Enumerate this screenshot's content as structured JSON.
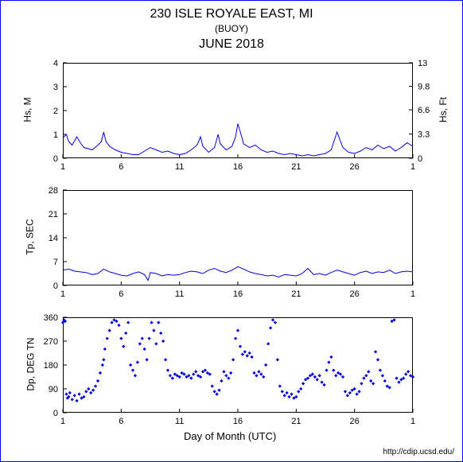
{
  "header": {
    "title": "230 ISLE ROYALE EAST, MI",
    "subtitle": "(BUOY)",
    "month": "JUNE 2018"
  },
  "xlabel": "Day of Month (UTC)",
  "credit": "http://cdip.ucsd.edu/",
  "xaxis": {
    "min": 1,
    "max": 31,
    "ticks": [
      1,
      6,
      11,
      16,
      21,
      26,
      1
    ],
    "tick_positions": [
      1,
      6,
      11,
      16,
      21,
      26,
      31
    ]
  },
  "colors": {
    "line": "#0000ee",
    "scatter": "#0000ee",
    "axis": "#000000",
    "bg": "#ffffff",
    "border": "#0000ff"
  },
  "chart1": {
    "ylabel_left": "Hs, M",
    "ylabel_right": "Hs, Ft",
    "ylim_left": [
      0,
      4
    ],
    "yticks_left": [
      0,
      1,
      2,
      3,
      4
    ],
    "ylim_right": [
      0,
      13
    ],
    "yticks_right": [
      0,
      3.3,
      6.6,
      9.8,
      13
    ],
    "data": [
      [
        1.0,
        0.85
      ],
      [
        1.3,
        1.0
      ],
      [
        1.5,
        0.7
      ],
      [
        1.8,
        0.55
      ],
      [
        2.2,
        0.9
      ],
      [
        2.5,
        0.65
      ],
      [
        2.8,
        0.45
      ],
      [
        3.2,
        0.4
      ],
      [
        3.5,
        0.35
      ],
      [
        4.0,
        0.55
      ],
      [
        4.3,
        0.7
      ],
      [
        4.5,
        1.1
      ],
      [
        4.7,
        0.7
      ],
      [
        5.0,
        0.5
      ],
      [
        5.5,
        0.35
      ],
      [
        6.0,
        0.25
      ],
      [
        6.5,
        0.2
      ],
      [
        7.0,
        0.15
      ],
      [
        7.5,
        0.15
      ],
      [
        8.0,
        0.3
      ],
      [
        8.5,
        0.45
      ],
      [
        9.0,
        0.35
      ],
      [
        9.5,
        0.25
      ],
      [
        10.0,
        0.3
      ],
      [
        10.5,
        0.2
      ],
      [
        11.0,
        0.15
      ],
      [
        11.5,
        0.2
      ],
      [
        12.0,
        0.35
      ],
      [
        12.5,
        0.55
      ],
      [
        12.8,
        0.9
      ],
      [
        13.0,
        0.5
      ],
      [
        13.5,
        0.25
      ],
      [
        14.0,
        0.45
      ],
      [
        14.3,
        1.0
      ],
      [
        14.5,
        0.6
      ],
      [
        15.0,
        0.35
      ],
      [
        15.5,
        0.5
      ],
      [
        15.8,
        0.9
      ],
      [
        16.0,
        1.45
      ],
      [
        16.3,
        0.95
      ],
      [
        16.5,
        0.6
      ],
      [
        17.0,
        0.45
      ],
      [
        17.5,
        0.55
      ],
      [
        18.0,
        0.35
      ],
      [
        18.5,
        0.25
      ],
      [
        19.0,
        0.3
      ],
      [
        19.5,
        0.2
      ],
      [
        20.0,
        0.15
      ],
      [
        20.5,
        0.2
      ],
      [
        21.0,
        0.15
      ],
      [
        21.5,
        0.1
      ],
      [
        22.0,
        0.15
      ],
      [
        22.5,
        0.1
      ],
      [
        23.0,
        0.15
      ],
      [
        23.5,
        0.2
      ],
      [
        24.0,
        0.35
      ],
      [
        24.3,
        0.8
      ],
      [
        24.5,
        1.1
      ],
      [
        24.8,
        0.7
      ],
      [
        25.0,
        0.45
      ],
      [
        25.5,
        0.25
      ],
      [
        26.0,
        0.2
      ],
      [
        26.5,
        0.3
      ],
      [
        27.0,
        0.45
      ],
      [
        27.5,
        0.35
      ],
      [
        28.0,
        0.55
      ],
      [
        28.5,
        0.4
      ],
      [
        29.0,
        0.5
      ],
      [
        29.5,
        0.3
      ],
      [
        30.0,
        0.45
      ],
      [
        30.5,
        0.65
      ],
      [
        31.0,
        0.5
      ]
    ]
  },
  "chart2": {
    "ylabel_left": "Tp, SEC",
    "ylim_left": [
      0,
      28
    ],
    "yticks_left": [
      0,
      7,
      14,
      21,
      28
    ],
    "data": [
      [
        1.0,
        4.5
      ],
      [
        1.5,
        4.8
      ],
      [
        2.0,
        4.2
      ],
      [
        2.5,
        4.0
      ],
      [
        3.0,
        3.8
      ],
      [
        3.5,
        3.2
      ],
      [
        4.0,
        3.5
      ],
      [
        4.5,
        4.8
      ],
      [
        5.0,
        4.0
      ],
      [
        5.5,
        3.5
      ],
      [
        6.0,
        3.0
      ],
      [
        6.5,
        2.8
      ],
      [
        7.0,
        3.5
      ],
      [
        7.5,
        4.0
      ],
      [
        8.0,
        3.2
      ],
      [
        8.3,
        1.5
      ],
      [
        8.5,
        3.8
      ],
      [
        9.0,
        3.5
      ],
      [
        9.5,
        2.8
      ],
      [
        10.0,
        3.2
      ],
      [
        10.5,
        3.0
      ],
      [
        11.0,
        3.2
      ],
      [
        11.5,
        3.8
      ],
      [
        12.0,
        4.2
      ],
      [
        12.5,
        4.0
      ],
      [
        13.0,
        3.5
      ],
      [
        13.5,
        4.5
      ],
      [
        14.0,
        5.0
      ],
      [
        14.5,
        4.2
      ],
      [
        15.0,
        3.8
      ],
      [
        15.5,
        4.5
      ],
      [
        16.0,
        5.5
      ],
      [
        16.5,
        4.8
      ],
      [
        17.0,
        4.0
      ],
      [
        17.5,
        3.5
      ],
      [
        18.0,
        3.2
      ],
      [
        18.5,
        2.8
      ],
      [
        19.0,
        3.0
      ],
      [
        19.5,
        2.5
      ],
      [
        20.0,
        3.2
      ],
      [
        20.5,
        3.0
      ],
      [
        21.0,
        2.8
      ],
      [
        21.5,
        3.5
      ],
      [
        22.0,
        5.0
      ],
      [
        22.5,
        3.2
      ],
      [
        23.0,
        3.5
      ],
      [
        23.5,
        3.0
      ],
      [
        24.0,
        3.8
      ],
      [
        24.5,
        4.5
      ],
      [
        25.0,
        4.0
      ],
      [
        25.5,
        3.5
      ],
      [
        26.0,
        3.0
      ],
      [
        26.5,
        3.8
      ],
      [
        27.0,
        4.2
      ],
      [
        27.5,
        3.5
      ],
      [
        28.0,
        4.0
      ],
      [
        28.5,
        3.8
      ],
      [
        29.0,
        4.5
      ],
      [
        29.5,
        3.5
      ],
      [
        30.0,
        4.0
      ],
      [
        30.5,
        4.2
      ],
      [
        31.0,
        4.0
      ]
    ]
  },
  "chart3": {
    "ylabel_left": "Dp, DEG TN",
    "ylim_left": [
      0,
      360
    ],
    "yticks_left": [
      0,
      90,
      180,
      270,
      360
    ],
    "data": [
      [
        1.0,
        340
      ],
      [
        1.1,
        350
      ],
      [
        1.2,
        345
      ],
      [
        1.3,
        70
      ],
      [
        1.4,
        55
      ],
      [
        1.5,
        60
      ],
      [
        1.6,
        75
      ],
      [
        1.8,
        50
      ],
      [
        2.0,
        65
      ],
      [
        2.2,
        45
      ],
      [
        2.4,
        70
      ],
      [
        2.6,
        55
      ],
      [
        2.8,
        60
      ],
      [
        3.0,
        80
      ],
      [
        3.2,
        90
      ],
      [
        3.4,
        75
      ],
      [
        3.6,
        85
      ],
      [
        3.8,
        100
      ],
      [
        4.0,
        120
      ],
      [
        4.2,
        150
      ],
      [
        4.4,
        180
      ],
      [
        4.5,
        200
      ],
      [
        4.6,
        240
      ],
      [
        4.8,
        280
      ],
      [
        5.0,
        310
      ],
      [
        5.2,
        340
      ],
      [
        5.4,
        350
      ],
      [
        5.6,
        345
      ],
      [
        5.8,
        330
      ],
      [
        6.0,
        280
      ],
      [
        6.2,
        250
      ],
      [
        6.4,
        300
      ],
      [
        6.6,
        340
      ],
      [
        6.8,
        180
      ],
      [
        7.0,
        160
      ],
      [
        7.2,
        140
      ],
      [
        7.4,
        190
      ],
      [
        7.6,
        260
      ],
      [
        7.8,
        280
      ],
      [
        8.0,
        240
      ],
      [
        8.2,
        200
      ],
      [
        8.4,
        280
      ],
      [
        8.6,
        340
      ],
      [
        8.8,
        310
      ],
      [
        9.0,
        260
      ],
      [
        9.2,
        340
      ],
      [
        9.4,
        300
      ],
      [
        9.6,
        270
      ],
      [
        9.8,
        200
      ],
      [
        10.0,
        160
      ],
      [
        10.2,
        140
      ],
      [
        10.4,
        130
      ],
      [
        10.6,
        145
      ],
      [
        10.8,
        140
      ],
      [
        11.0,
        135
      ],
      [
        11.2,
        150
      ],
      [
        11.4,
        145
      ],
      [
        11.6,
        135
      ],
      [
        11.8,
        140
      ],
      [
        12.0,
        130
      ],
      [
        12.2,
        145
      ],
      [
        12.4,
        155
      ],
      [
        12.6,
        140
      ],
      [
        12.8,
        135
      ],
      [
        13.0,
        155
      ],
      [
        13.2,
        160
      ],
      [
        13.4,
        150
      ],
      [
        13.6,
        145
      ],
      [
        13.8,
        100
      ],
      [
        14.0,
        80
      ],
      [
        14.2,
        70
      ],
      [
        14.4,
        85
      ],
      [
        14.6,
        120
      ],
      [
        14.8,
        155
      ],
      [
        15.0,
        140
      ],
      [
        15.2,
        130
      ],
      [
        15.4,
        150
      ],
      [
        15.6,
        200
      ],
      [
        15.8,
        280
      ],
      [
        16.0,
        310
      ],
      [
        16.2,
        250
      ],
      [
        16.4,
        220
      ],
      [
        16.6,
        230
      ],
      [
        16.8,
        215
      ],
      [
        17.0,
        225
      ],
      [
        17.2,
        210
      ],
      [
        17.4,
        150
      ],
      [
        17.6,
        140
      ],
      [
        17.8,
        155
      ],
      [
        18.0,
        145
      ],
      [
        18.2,
        135
      ],
      [
        18.4,
        180
      ],
      [
        18.6,
        260
      ],
      [
        18.8,
        320
      ],
      [
        19.0,
        350
      ],
      [
        19.2,
        340
      ],
      [
        19.4,
        200
      ],
      [
        19.6,
        100
      ],
      [
        19.8,
        80
      ],
      [
        20.0,
        65
      ],
      [
        20.2,
        75
      ],
      [
        20.4,
        60
      ],
      [
        20.6,
        70
      ],
      [
        20.8,
        55
      ],
      [
        21.0,
        60
      ],
      [
        21.2,
        80
      ],
      [
        21.4,
        90
      ],
      [
        21.6,
        110
      ],
      [
        21.8,
        125
      ],
      [
        22.0,
        130
      ],
      [
        22.2,
        140
      ],
      [
        22.4,
        145
      ],
      [
        22.6,
        135
      ],
      [
        22.8,
        125
      ],
      [
        23.0,
        140
      ],
      [
        23.2,
        115
      ],
      [
        23.4,
        105
      ],
      [
        23.6,
        160
      ],
      [
        23.8,
        190
      ],
      [
        24.0,
        210
      ],
      [
        24.2,
        160
      ],
      [
        24.4,
        140
      ],
      [
        24.6,
        150
      ],
      [
        24.8,
        145
      ],
      [
        25.0,
        135
      ],
      [
        25.2,
        80
      ],
      [
        25.4,
        65
      ],
      [
        25.6,
        75
      ],
      [
        25.8,
        85
      ],
      [
        26.0,
        90
      ],
      [
        26.2,
        70
      ],
      [
        26.4,
        80
      ],
      [
        26.6,
        110
      ],
      [
        26.8,
        130
      ],
      [
        27.0,
        140
      ],
      [
        27.2,
        155
      ],
      [
        27.4,
        120
      ],
      [
        27.6,
        110
      ],
      [
        27.8,
        230
      ],
      [
        28.0,
        200
      ],
      [
        28.2,
        160
      ],
      [
        28.4,
        140
      ],
      [
        28.6,
        120
      ],
      [
        28.8,
        100
      ],
      [
        29.0,
        95
      ],
      [
        29.2,
        345
      ],
      [
        29.4,
        350
      ],
      [
        29.6,
        130
      ],
      [
        29.8,
        115
      ],
      [
        30.0,
        125
      ],
      [
        30.2,
        130
      ],
      [
        30.4,
        145
      ],
      [
        30.6,
        155
      ],
      [
        30.8,
        140
      ],
      [
        31.0,
        135
      ]
    ]
  }
}
